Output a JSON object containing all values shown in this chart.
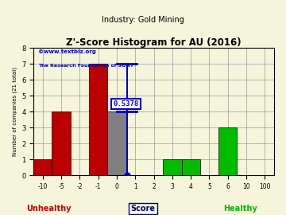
{
  "title": "Z'-Score Histogram for AU (2016)",
  "subtitle": "Industry: Gold Mining",
  "watermark_line1": "©www.textbiz.org",
  "watermark_line2": "The Research Foundation of SUNY",
  "xlabel_center": "Score",
  "xlabel_left": "Unhealthy",
  "xlabel_right": "Healthy",
  "ylabel": "Number of companies (21 total)",
  "bar_data": [
    {
      "bin_index": 0,
      "height": 1,
      "color": "#bb0000"
    },
    {
      "bin_index": 1,
      "height": 4,
      "color": "#bb0000"
    },
    {
      "bin_index": 3,
      "height": 7,
      "color": "#bb0000"
    },
    {
      "bin_index": 4,
      "height": 4,
      "color": "#808080"
    },
    {
      "bin_index": 7,
      "height": 1,
      "color": "#00bb00"
    },
    {
      "bin_index": 8,
      "height": 1,
      "color": "#00bb00"
    },
    {
      "bin_index": 10,
      "height": 3,
      "color": "#00bb00"
    }
  ],
  "xtick_labels": [
    "-10",
    "-5",
    "-2",
    "-1",
    "0",
    "1",
    "2",
    "3",
    "4",
    "5",
    "6",
    "10",
    "100"
  ],
  "xtick_positions": [
    0,
    1,
    2,
    3,
    4,
    5,
    6,
    7,
    8,
    9,
    10,
    11,
    12
  ],
  "num_bins": 13,
  "marker_bin_x": 4.5378,
  "marker_label": "0.5378",
  "marker_top_y": 7,
  "marker_bottom_y": 0,
  "marker_mid_y": 4,
  "marker_color": "#0000cc",
  "yticks": [
    0,
    1,
    2,
    3,
    4,
    5,
    6,
    7,
    8
  ],
  "xlim": [
    -0.5,
    12.5
  ],
  "ylim": [
    0,
    8
  ],
  "bg_color": "#f5f5dc",
  "grid_color": "#999999",
  "title_color": "#000000",
  "unhealthy_color": "#cc0000",
  "healthy_color": "#00bb00",
  "score_color": "#000080",
  "watermark_color1": "#0000cc",
  "watermark_color2": "#0000cc"
}
